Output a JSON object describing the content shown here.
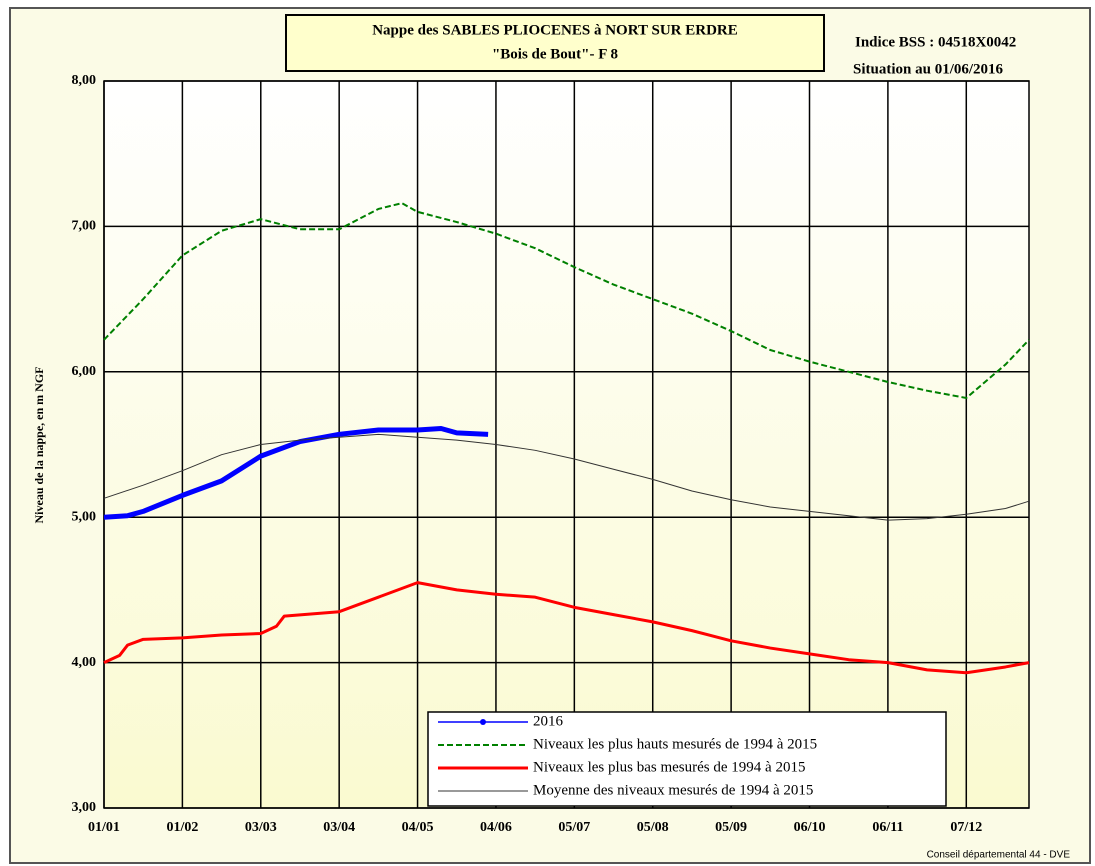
{
  "chart_data": {
    "type": "line",
    "title": "Nappe des SABLES PLIOCENES à NORT SUR ERDRE",
    "subtitle": "\"Bois de Bout\"- F 8",
    "annotations": [
      "Indice BSS : 04518X0042",
      "Situation au 01/06/2016"
    ],
    "ylabel": "Niveau de la nappe, en m NGF",
    "footer": "Conseil départemental 44 - DVE",
    "xlim": [
      0,
      11.8
    ],
    "xticks": [
      {
        "value": 0,
        "label": "01/01"
      },
      {
        "value": 1,
        "label": "01/02"
      },
      {
        "value": 2,
        "label": "03/03"
      },
      {
        "value": 3,
        "label": "03/04"
      },
      {
        "value": 4,
        "label": "04/05"
      },
      {
        "value": 5,
        "label": "04/06"
      },
      {
        "value": 6,
        "label": "05/07"
      },
      {
        "value": 7,
        "label": "05/08"
      },
      {
        "value": 8,
        "label": "05/09"
      },
      {
        "value": 9,
        "label": "06/10"
      },
      {
        "value": 10,
        "label": "06/11"
      },
      {
        "value": 11,
        "label": "07/12"
      }
    ],
    "ylim": [
      3,
      8
    ],
    "yticks": [
      {
        "value": 3,
        "label": "3,00"
      },
      {
        "value": 4,
        "label": "4,00"
      },
      {
        "value": 5,
        "label": "5,00"
      },
      {
        "value": 6,
        "label": "6,00"
      },
      {
        "value": 7,
        "label": "7,00"
      },
      {
        "value": 8,
        "label": "8,00"
      }
    ],
    "grid": true,
    "legend": "bottom",
    "series": [
      {
        "name": "2016",
        "color": "#0000ff",
        "style": "solid-markers",
        "x": [
          0,
          0.3,
          0.5,
          1,
          1.5,
          2,
          2.5,
          3,
          3.5,
          4,
          4.3,
          4.5,
          4.9
        ],
        "values": [
          5.0,
          5.01,
          5.04,
          5.15,
          5.25,
          5.42,
          5.52,
          5.57,
          5.6,
          5.6,
          5.61,
          5.58,
          5.57
        ]
      },
      {
        "name": "Niveaux les plus hauts mesurés de 1994 à 2015",
        "color": "#008000",
        "style": "dashed",
        "x": [
          0,
          0.5,
          1,
          1.5,
          2,
          2.5,
          3,
          3.5,
          3.8,
          4,
          4.5,
          5,
          5.5,
          6,
          6.5,
          7,
          7.5,
          8,
          8.5,
          9,
          9.5,
          10,
          10.5,
          11,
          11.5,
          11.8
        ],
        "values": [
          6.22,
          6.5,
          6.8,
          6.97,
          7.05,
          6.98,
          6.98,
          7.12,
          7.16,
          7.1,
          7.03,
          6.95,
          6.85,
          6.72,
          6.6,
          6.5,
          6.4,
          6.28,
          6.15,
          6.07,
          6.0,
          5.93,
          5.87,
          5.82,
          6.05,
          6.22
        ]
      },
      {
        "name": "Niveaux les plus bas mesurés de 1994 à 2015",
        "color": "#ff0000",
        "style": "solid",
        "x": [
          0,
          0.2,
          0.3,
          0.5,
          1,
          1.5,
          2,
          2.2,
          2.3,
          3,
          3.5,
          4,
          4.5,
          5,
          5.5,
          6,
          6.5,
          7,
          7.5,
          8,
          8.5,
          9,
          9.5,
          10,
          10.5,
          11,
          11.5,
          11.8
        ],
        "values": [
          4.0,
          4.05,
          4.12,
          4.16,
          4.17,
          4.19,
          4.2,
          4.25,
          4.32,
          4.35,
          4.45,
          4.55,
          4.5,
          4.47,
          4.45,
          4.38,
          4.33,
          4.28,
          4.22,
          4.15,
          4.1,
          4.06,
          4.02,
          4.0,
          3.95,
          3.93,
          3.97,
          4.0
        ]
      },
      {
        "name": "Moyenne des niveaux mesurés de 1994 à 2015",
        "color": "#333333",
        "style": "thin",
        "x": [
          0,
          0.5,
          1,
          1.5,
          2,
          2.5,
          3,
          3.5,
          4,
          4.5,
          5,
          5.5,
          6,
          6.5,
          7,
          7.5,
          8,
          8.5,
          9,
          9.5,
          10,
          10.5,
          11,
          11.5,
          11.8
        ],
        "values": [
          5.13,
          5.22,
          5.32,
          5.43,
          5.5,
          5.53,
          5.55,
          5.57,
          5.55,
          5.53,
          5.5,
          5.46,
          5.4,
          5.33,
          5.26,
          5.18,
          5.12,
          5.07,
          5.04,
          5.01,
          4.98,
          4.99,
          5.02,
          5.06,
          5.11
        ]
      }
    ]
  }
}
